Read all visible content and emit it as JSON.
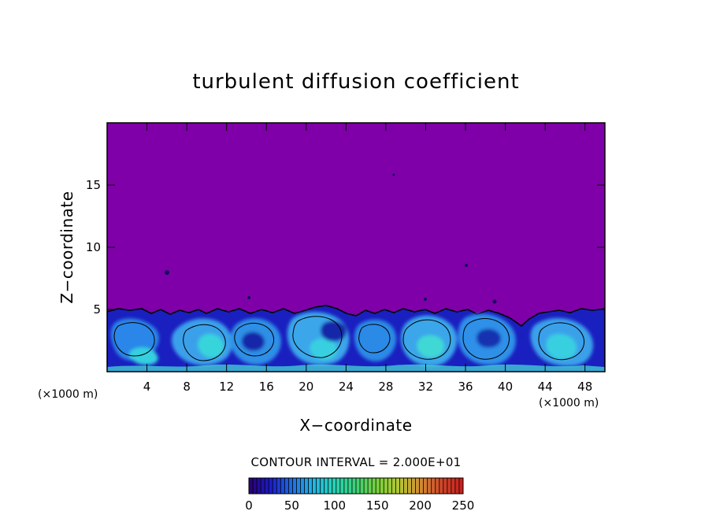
{
  "chart_data": {
    "type": "heatmap",
    "title": "turbulent diffusion coefficient",
    "xlabel": "X−coordinate",
    "ylabel": "Z−coordinate",
    "x_unit_left": "(×1000 m)",
    "x_unit_right": "(×1000 m)",
    "xlim": [
      0,
      50
    ],
    "ylim": [
      0,
      20
    ],
    "x_ticks": [
      4,
      8,
      12,
      16,
      20,
      24,
      28,
      32,
      36,
      40,
      44,
      48
    ],
    "x_tick_labels": [
      "4",
      "8",
      "12",
      "16",
      "20",
      "24",
      "28",
      "32",
      "36",
      "40",
      "44",
      "48"
    ],
    "y_ticks": [
      5,
      10,
      15
    ],
    "y_tick_labels": [
      "5",
      "10",
      "15"
    ],
    "background_value": 0,
    "background_color": "#7f00a8",
    "turbulent_layer_top": 5,
    "contour_interval_text": "CONTOUR INTERVAL = 2.000E+01",
    "contour_interval": 20,
    "colorbar": {
      "min": 0,
      "max": 250,
      "tick_values": [
        0,
        50,
        100,
        150,
        200,
        250
      ],
      "tick_labels": [
        "0",
        "50",
        "100",
        "150",
        "200",
        "250"
      ],
      "colors": [
        "#2a0070",
        "#1b1bc8",
        "#1e6ee6",
        "#22b4e6",
        "#28d2b4",
        "#3cd278",
        "#78d23c",
        "#b4c832",
        "#d28c32",
        "#d24628",
        "#c81e1e"
      ]
    }
  }
}
